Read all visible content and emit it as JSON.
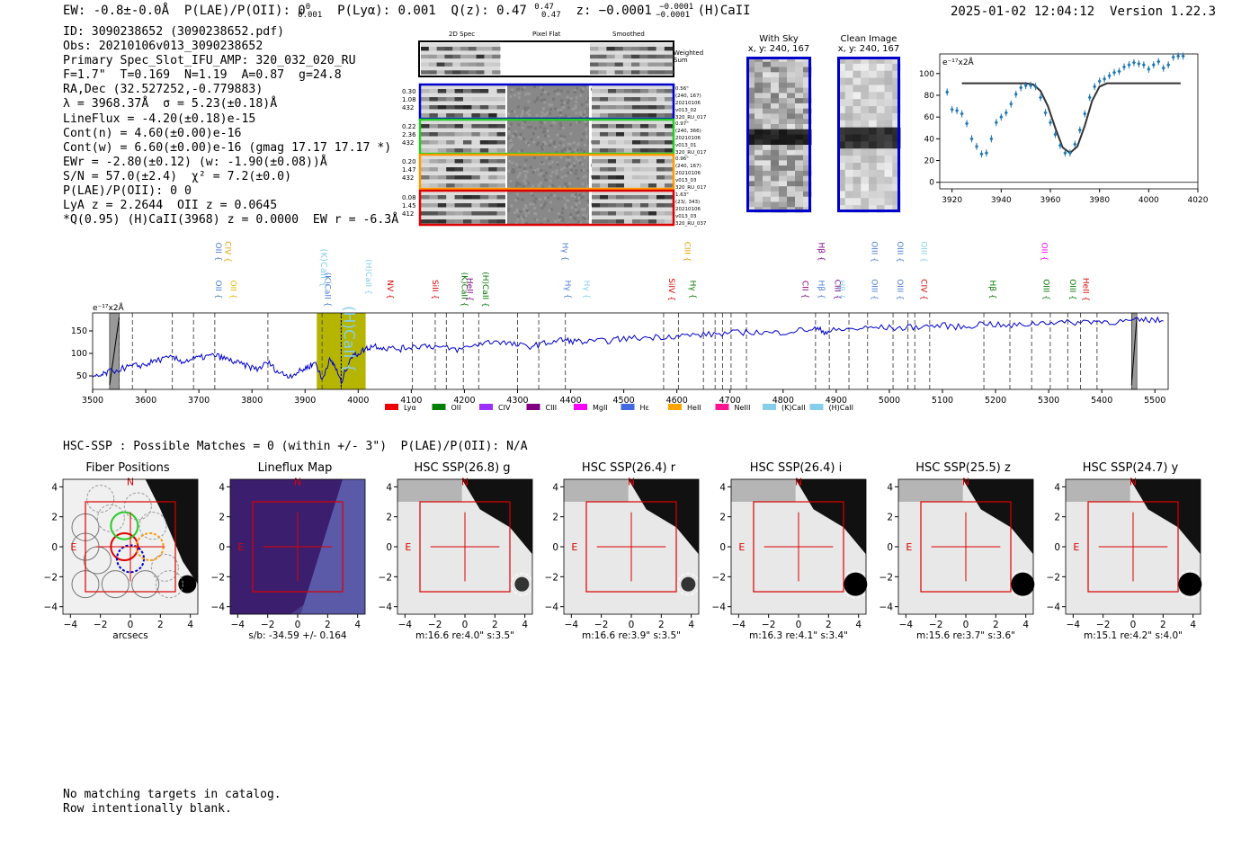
{
  "header": {
    "ew": "EW: -0.8±-0.0Å",
    "plae_label": "P(LAE)/P(OII): 0",
    "plae_sup": "0",
    "plae_sub": "0.001",
    "plya": "P(Lyα): 0.001",
    "qz": "Q(z): 0.47",
    "qz_sup": "0.47",
    "qz_sub": "0.47",
    "z": "z: −0.0001",
    "z_sup": "−0.0001",
    "z_sub": "−0.0001",
    "line": "(H)CaII",
    "datetime": "2025-01-02 12:04:12",
    "version": "Version 1.22.3"
  },
  "info": {
    "lines": [
      "ID: 3090238652 (3090238652.pdf)",
      "Obs: 20210106v013_3090238652",
      "Primary Spec_Slot_IFU_AMP: 320_032_020_RU",
      "F=1.7\"  T=0.169  N=1.19  A=0.87  g=24.8",
      "RA,Dec (32.527252,-0.779883)",
      "λ = 3968.37Å  σ = 5.23(±0.18)Å",
      "LineFlux = -4.20(±0.18)e-15",
      "Cont(n) = 4.60(±0.00)e-16",
      "Cont(w) = 6.60(±0.00)e-16 (gmag 17.17 17.17 *)",
      "EWr = -2.80(±0.12) (w: -1.90(±0.08))Å",
      "S/N = 57.0(±2.4)  χ² = 7.2(±0.0)",
      "P(LAE)/P(OII): 0 0",
      "LyA z = 2.2644  OII z = 0.0645",
      "*Q(0.95) (H)CaII(3968) z = 0.0000  EW r = -6.3Å"
    ]
  },
  "cutouts": {
    "headers": [
      "2D Spec",
      "Pixel Flat",
      "Smoothed"
    ],
    "weighted_label": "Weighted Sum",
    "rows": [
      {
        "left": [
          "0.30",
          "1.08",
          "432"
        ],
        "right": [
          "0.56\"",
          "(240, 167)",
          "20210106",
          "v013_02",
          "320_RU_017"
        ],
        "color": "#0000cc"
      },
      {
        "left": [
          "0.22",
          "2.36",
          "432"
        ],
        "right": [
          "0.97\"",
          "(240, 366)",
          "20210106",
          "v013_01",
          "320_RU_017"
        ],
        "color": "#22cc22"
      },
      {
        "left": [
          "0.20",
          "1.47",
          "432"
        ],
        "right": [
          "0.96\"",
          "(240, 167)",
          "20210106",
          "v013_03",
          "320_RU_017"
        ],
        "color": "#ff9900"
      },
      {
        "left": [
          "0.08",
          "1.45",
          "412"
        ],
        "right": [
          "1.63\"",
          "(23/, 343)",
          "20210106",
          "v013_03",
          "320_RU_037"
        ],
        "color": "#dd0000"
      }
    ]
  },
  "thumbs": {
    "with_sky": {
      "title": "With Sky",
      "sub": "x, y: 240, 167"
    },
    "clean": {
      "title": "Clean Image",
      "sub": "x, y: 240, 167"
    }
  },
  "zoom_chart": {
    "type": "scatter",
    "ylabel": "e⁻¹⁷x2Å",
    "xticks": [
      3920,
      3940,
      3960,
      3980,
      4000,
      4020
    ],
    "yticks": [
      0,
      20,
      40,
      60,
      80,
      100
    ],
    "xlim": [
      3915,
      4020
    ],
    "ylim": [
      -6,
      118
    ],
    "x": [
      3918,
      3920,
      3922,
      3924,
      3926,
      3928,
      3930,
      3932,
      3934,
      3936,
      3938,
      3940,
      3942,
      3944,
      3946,
      3948,
      3950,
      3952,
      3954,
      3956,
      3958,
      3960,
      3962,
      3964,
      3966,
      3968,
      3970,
      3972,
      3974,
      3976,
      3978,
      3980,
      3982,
      3984,
      3986,
      3988,
      3990,
      3992,
      3994,
      3996,
      3998,
      4000,
      4002,
      4004,
      4006,
      4008,
      4010,
      4012,
      4014
    ],
    "y": [
      83,
      67,
      66,
      63,
      54,
      40,
      33,
      26,
      27,
      40,
      55,
      60,
      64,
      72,
      81,
      87,
      89,
      89,
      88,
      78,
      64,
      55,
      44,
      34,
      27,
      27,
      35,
      48,
      63,
      78,
      88,
      93,
      95,
      98,
      101,
      102,
      106,
      108,
      110,
      109,
      108,
      104,
      108,
      111,
      105,
      108,
      115,
      116,
      116
    ],
    "model_x": [
      3924,
      3950,
      3953,
      3956,
      3959,
      3962,
      3965,
      3968,
      3971,
      3974,
      3977,
      3980,
      3983,
      4013
    ],
    "model_y": [
      91,
      91,
      90,
      84,
      70,
      50,
      32,
      27,
      33,
      52,
      75,
      88,
      91,
      91
    ]
  },
  "spectrum": {
    "type": "line",
    "ylabel": "e⁻¹⁷x2Å",
    "xticks": [
      3500,
      3600,
      3700,
      3800,
      3900,
      4000,
      4100,
      4200,
      4300,
      4400,
      4500,
      4600,
      4700,
      4800,
      4900,
      5000,
      5100,
      5200,
      5300,
      5400,
      5500
    ],
    "yticks": [
      50,
      100,
      150
    ],
    "xlim": [
      3500,
      5525
    ],
    "ylim": [
      20,
      190
    ],
    "highlight": [
      3922,
      4014
    ],
    "line_center": 3968,
    "gaps": [
      [
        3532,
        3550
      ],
      [
        5456,
        5466
      ]
    ],
    "dashes": [
      3550,
      3575,
      3650,
      3690,
      3730,
      3830,
      3932,
      3968,
      4102,
      4145,
      4166,
      4198,
      4227,
      4300,
      4340,
      4390,
      4575,
      4603,
      4650,
      4672,
      4686,
      4702,
      4731,
      4861,
      4887,
      4924,
      4959,
      5007,
      5035,
      5048,
      5076,
      5178,
      5227,
      5268,
      5303,
      5336,
      5360,
      5391
    ],
    "x": [
      3500,
      3515,
      3530,
      3560,
      3580,
      3600,
      3620,
      3650,
      3670,
      3690,
      3710,
      3730,
      3750,
      3770,
      3790,
      3810,
      3830,
      3850,
      3870,
      3890,
      3905,
      3920,
      3932,
      3945,
      3955,
      3968,
      3985,
      4000,
      4014,
      4030,
      4050,
      4080,
      4100,
      4130,
      4160,
      4190,
      4230,
      4260,
      4290,
      4320,
      4350,
      4380,
      4400,
      4430,
      4470,
      4500,
      4540,
      4580,
      4620,
      4660,
      4700,
      4740,
      4780,
      4820,
      4860,
      4880,
      4900,
      4940,
      4980,
      5020,
      5060,
      5100,
      5140,
      5180,
      5220,
      5260,
      5300,
      5340,
      5380,
      5420,
      5460,
      5490,
      5520
    ],
    "y": [
      45,
      50,
      58,
      68,
      72,
      75,
      85,
      90,
      82,
      88,
      92,
      96,
      88,
      80,
      72,
      65,
      80,
      58,
      50,
      60,
      70,
      80,
      40,
      85,
      75,
      35,
      90,
      100,
      110,
      118,
      112,
      110,
      115,
      118,
      112,
      108,
      122,
      128,
      120,
      115,
      122,
      130,
      128,
      125,
      128,
      133,
      135,
      138,
      140,
      142,
      145,
      148,
      145,
      150,
      155,
      148,
      152,
      155,
      158,
      156,
      160,
      162,
      158,
      168,
      160,
      165,
      170,
      168,
      172,
      170,
      172,
      175,
      172
    ],
    "line_labels": [
      {
        "w": 3727,
        "t": "OII",
        "c": "#4a7bd4",
        "row": "top"
      },
      {
        "w": 3727,
        "t": "OII",
        "c": "#4a7bd4",
        "row": "mid"
      },
      {
        "w": 3745,
        "t": "CIV",
        "c": "#e69f00",
        "row": "top"
      },
      {
        "w": 3755,
        "t": "OII",
        "c": "#e6b800",
        "row": "mid"
      },
      {
        "w": 3925,
        "t": "(K)CaII",
        "c": "#87ceeb",
        "row": "big1"
      },
      {
        "w": 3933,
        "t": "(K)CaII",
        "c": "#4a7bd4",
        "row": "mid"
      },
      {
        "w": 3968,
        "t": "(H)CaII",
        "c": "#87ceeb",
        "row": "big"
      },
      {
        "w": 4010,
        "t": "(H)CaII",
        "c": "#87ceeb",
        "row": "mid2"
      },
      {
        "w": 4050,
        "t": "NV",
        "c": "#dd0000",
        "row": "mid"
      },
      {
        "w": 4135,
        "t": "SiII",
        "c": "#dd0000",
        "row": "mid"
      },
      {
        "w": 4190,
        "t": "(K)CaII",
        "c": "#007700",
        "row": "mid"
      },
      {
        "w": 4200,
        "t": "HeII",
        "c": "#800080",
        "row": "mid"
      },
      {
        "w": 4230,
        "t": "(H)CaII",
        "c": "#007700",
        "row": "mid"
      },
      {
        "w": 4380,
        "t": "Hγ",
        "c": "#4a7bd4",
        "row": "top"
      },
      {
        "w": 4385,
        "t": "Hγ",
        "c": "#4a7bd4",
        "row": "mid"
      },
      {
        "w": 4420,
        "t": "Hγ",
        "c": "#87ceeb",
        "row": "mid"
      },
      {
        "w": 4580,
        "t": "SiIV",
        "c": "#dd0000",
        "row": "mid"
      },
      {
        "w": 4610,
        "t": "CIII",
        "c": "#e69f00",
        "row": "top"
      },
      {
        "w": 4620,
        "t": "Hγ",
        "c": "#007700",
        "row": "mid"
      },
      {
        "w": 4832,
        "t": "CII",
        "c": "#800080",
        "row": "mid"
      },
      {
        "w": 4862,
        "t": "Hβ",
        "c": "#800080",
        "row": "top"
      },
      {
        "w": 4862,
        "t": "Hβ",
        "c": "#4a7bd4",
        "row": "mid"
      },
      {
        "w": 4893,
        "t": "CIII",
        "c": "#800080",
        "row": "mid"
      },
      {
        "w": 4900,
        "t": "Hβ",
        "c": "#87ceeb",
        "row": "mid"
      },
      {
        "w": 4962,
        "t": "OIII",
        "c": "#4a7bd4",
        "row": "top"
      },
      {
        "w": 4962,
        "t": "OIII",
        "c": "#4a7bd4",
        "row": "mid"
      },
      {
        "w": 5010,
        "t": "OIII",
        "c": "#4a7bd4",
        "row": "top"
      },
      {
        "w": 5010,
        "t": "OIII",
        "c": "#4a7bd4",
        "row": "mid"
      },
      {
        "w": 5055,
        "t": "OIII",
        "c": "#87ceeb",
        "row": "top"
      },
      {
        "w": 5055,
        "t": "CIV",
        "c": "#dd0000",
        "row": "mid"
      },
      {
        "w": 5185,
        "t": "Hβ",
        "c": "#007700",
        "row": "mid"
      },
      {
        "w": 5282,
        "t": "OII",
        "c": "#ff00ff",
        "row": "top"
      },
      {
        "w": 5285,
        "t": "OIII",
        "c": "#007700",
        "row": "mid"
      },
      {
        "w": 5335,
        "t": "OIII",
        "c": "#007700",
        "row": "mid"
      },
      {
        "w": 5360,
        "t": "HeII",
        "c": "#dd0000",
        "row": "mid"
      }
    ],
    "legend": [
      {
        "t": "Lyα",
        "c": "#ee0000"
      },
      {
        "t": "OII",
        "c": "#008000"
      },
      {
        "t": "CIV",
        "c": "#9b30ff"
      },
      {
        "t": "CIII",
        "c": "#800080"
      },
      {
        "t": "MgII",
        "c": "#ff00ff"
      },
      {
        "t": "Hε",
        "c": "#4169e1"
      },
      {
        "t": "HeII",
        "c": "#ffa500"
      },
      {
        "t": "NeIII",
        "c": "#ff1493"
      },
      {
        "t": "(K)CaII",
        "c": "#87ceeb"
      },
      {
        "t": "(H)CaII",
        "c": "#87ceeb"
      }
    ]
  },
  "hsc": {
    "title": "HSC-SSP : Possible Matches = 0 (within +/- 3\")  P(LAE)/P(OII): N/A",
    "panels": [
      {
        "title": "Fiber Positions",
        "caption": "arcsecs"
      },
      {
        "title": "Lineflux Map",
        "caption": "s/b: -34.59 +/- 0.164"
      },
      {
        "title": "HSC SSP(26.8) g",
        "caption": "m:16.6  re:4.0\"  s:3.5\""
      },
      {
        "title": "HSC SSP(26.4) r",
        "caption": "m:16.6  re:3.9\"  s:3.5\""
      },
      {
        "title": "HSC SSP(26.4) i",
        "caption": "m:16.3  re:4.1\"  s:3.4\""
      },
      {
        "title": "HSC SSP(25.5) z",
        "caption": "m:15.6  re:3.7\"  s:3.6\""
      },
      {
        "title": "HSC SSP(24.7) y",
        "caption": "m:15.1  re:4.2\"  s:4.0\""
      }
    ],
    "ticks": [
      "−4",
      "−2",
      "0",
      "2",
      "4"
    ],
    "ticks_y": [
      "4",
      "2",
      "0",
      "−2",
      "−4"
    ],
    "N": "N",
    "E": "E"
  },
  "footer": {
    "line1": "No matching targets in catalog.",
    "line2": "Row intentionally blank."
  }
}
